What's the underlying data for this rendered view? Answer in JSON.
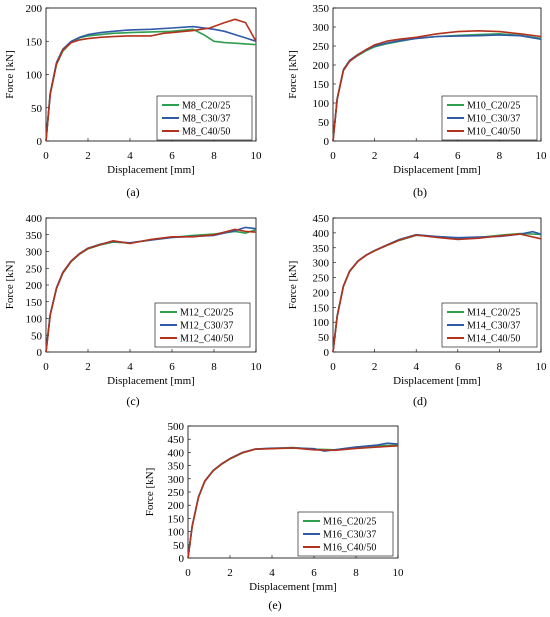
{
  "colors": {
    "c20": "#2e9e4f",
    "c30": "#2f5aa8",
    "c40": "#b3321e"
  },
  "chart_data": [
    {
      "type": "line",
      "panel_label": "(a)",
      "xlabel": "Displacement [mm]",
      "ylabel": "Force [kN]",
      "xlim": [
        0,
        10
      ],
      "ylim": [
        0,
        200
      ],
      "xticks": [
        0,
        2,
        4,
        6,
        8,
        10
      ],
      "yticks": [
        0,
        50,
        100,
        150,
        200
      ],
      "grid": false,
      "legend": "bottom-right",
      "series": [
        {
          "name": "M8_C20/25",
          "x": [
            0,
            0.2,
            0.5,
            0.8,
            1.2,
            1.6,
            2,
            2.6,
            3.2,
            4,
            5,
            6,
            7,
            7.5,
            8,
            8.5,
            9,
            9.5,
            10
          ],
          "y": [
            0,
            70,
            115,
            135,
            148,
            155,
            158,
            160,
            162,
            163,
            164,
            165,
            168,
            160,
            150,
            148,
            147,
            146,
            145
          ]
        },
        {
          "name": "M8_C30/37",
          "x": [
            0,
            0.2,
            0.5,
            0.8,
            1.2,
            1.6,
            2,
            2.6,
            3.2,
            4,
            5,
            6,
            7,
            8,
            8.5,
            9,
            9.5,
            10
          ],
          "y": [
            0,
            72,
            118,
            138,
            150,
            156,
            160,
            163,
            165,
            167,
            168,
            170,
            172,
            168,
            165,
            160,
            155,
            150
          ]
        },
        {
          "name": "M8_C40/50",
          "x": [
            0,
            0.2,
            0.5,
            0.8,
            1.2,
            1.6,
            2,
            2.6,
            3.2,
            4,
            5,
            5.6,
            6,
            7,
            7.8,
            8.5,
            9,
            9.5,
            10
          ],
          "y": [
            0,
            70,
            116,
            137,
            148,
            152,
            154,
            156,
            157,
            158,
            158,
            162,
            163,
            166,
            170,
            178,
            183,
            178,
            150
          ]
        }
      ]
    },
    {
      "type": "line",
      "panel_label": "(b)",
      "xlabel": "Displacement [mm]",
      "ylabel": "Force [kN]",
      "xlim": [
        0,
        10
      ],
      "ylim": [
        0,
        350
      ],
      "xticks": [
        0,
        2,
        4,
        6,
        8,
        10
      ],
      "yticks": [
        0,
        50,
        100,
        150,
        200,
        250,
        300,
        350
      ],
      "grid": false,
      "legend": "bottom-right",
      "series": [
        {
          "name": "M10_C20/25",
          "x": [
            0,
            0.2,
            0.5,
            0.8,
            1.2,
            1.6,
            2,
            2.6,
            3.2,
            4,
            5,
            6,
            7,
            8,
            9,
            10
          ],
          "y": [
            0,
            110,
            185,
            210,
            225,
            238,
            248,
            256,
            262,
            270,
            275,
            278,
            280,
            282,
            278,
            270
          ]
        },
        {
          "name": "M10_C30/37",
          "x": [
            0,
            0.2,
            0.5,
            0.8,
            1.2,
            1.6,
            2,
            2.6,
            3.2,
            4,
            5,
            6,
            7,
            8,
            9,
            10
          ],
          "y": [
            0,
            112,
            188,
            212,
            228,
            240,
            250,
            258,
            264,
            270,
            275,
            276,
            277,
            279,
            277,
            268
          ]
        },
        {
          "name": "M10_C40/50",
          "x": [
            0,
            0.2,
            0.5,
            0.8,
            1.2,
            1.6,
            2,
            2.6,
            3.2,
            4,
            5,
            6,
            7,
            8,
            9,
            10
          ],
          "y": [
            0,
            110,
            186,
            210,
            227,
            241,
            253,
            263,
            268,
            273,
            282,
            288,
            290,
            288,
            282,
            275
          ]
        }
      ]
    },
    {
      "type": "line",
      "panel_label": "(c)",
      "xlabel": "Displacement [mm]",
      "ylabel": "Force [kN]",
      "xlim": [
        0,
        10
      ],
      "ylim": [
        0,
        400
      ],
      "xticks": [
        0,
        2,
        4,
        6,
        8,
        10
      ],
      "yticks": [
        0,
        50,
        100,
        150,
        200,
        250,
        300,
        350,
        400
      ],
      "grid": false,
      "legend": "bottom-right",
      "series": [
        {
          "name": "M12_C20/25",
          "x": [
            0,
            0.2,
            0.5,
            0.8,
            1.2,
            1.6,
            2,
            2.6,
            3.2,
            4,
            5,
            6,
            7,
            8,
            9,
            9.5,
            10
          ],
          "y": [
            0,
            110,
            190,
            235,
            270,
            292,
            308,
            320,
            328,
            325,
            335,
            342,
            348,
            352,
            360,
            355,
            365
          ]
        },
        {
          "name": "M12_C30/37",
          "x": [
            0,
            0.2,
            0.5,
            0.8,
            1.2,
            1.6,
            2,
            2.6,
            3.2,
            4,
            5,
            6,
            7,
            8,
            9,
            9.5,
            10
          ],
          "y": [
            0,
            112,
            192,
            238,
            272,
            294,
            310,
            322,
            330,
            326,
            334,
            342,
            345,
            348,
            362,
            372,
            368
          ]
        },
        {
          "name": "M12_C40/50",
          "x": [
            0,
            0.2,
            0.5,
            0.8,
            1.2,
            1.6,
            2,
            2.6,
            3.2,
            4,
            5,
            6,
            7,
            8,
            9,
            9.5,
            10
          ],
          "y": [
            0,
            110,
            190,
            236,
            271,
            293,
            309,
            321,
            332,
            324,
            336,
            344,
            344,
            350,
            366,
            360,
            358
          ]
        }
      ]
    },
    {
      "type": "line",
      "panel_label": "(d)",
      "xlabel": "Displacement [mm]",
      "ylabel": "Force [kN]",
      "xlim": [
        0,
        10
      ],
      "ylim": [
        0,
        450
      ],
      "xticks": [
        0,
        2,
        4,
        6,
        8,
        10
      ],
      "yticks": [
        0,
        50,
        100,
        150,
        200,
        250,
        300,
        350,
        400,
        450
      ],
      "grid": false,
      "legend": "bottom-right",
      "series": [
        {
          "name": "M14_C20/25",
          "x": [
            0,
            0.2,
            0.5,
            0.8,
            1.2,
            1.6,
            2,
            2.6,
            3.2,
            4,
            5,
            6,
            7,
            8,
            9,
            10
          ],
          "y": [
            0,
            120,
            220,
            270,
            305,
            325,
            340,
            358,
            375,
            392,
            388,
            382,
            385,
            392,
            398,
            395
          ]
        },
        {
          "name": "M14_C30/37",
          "x": [
            0,
            0.2,
            0.5,
            0.8,
            1.2,
            1.6,
            2,
            2.6,
            3.2,
            4,
            5,
            6,
            7,
            8,
            9,
            9.6,
            10
          ],
          "y": [
            0,
            122,
            222,
            272,
            306,
            326,
            341,
            360,
            378,
            394,
            388,
            384,
            386,
            388,
            396,
            404,
            396
          ]
        },
        {
          "name": "M14_C40/50",
          "x": [
            0,
            0.2,
            0.5,
            0.8,
            1.2,
            1.6,
            2,
            2.6,
            3.2,
            4,
            5,
            6,
            7,
            8,
            9,
            10
          ],
          "y": [
            0,
            120,
            221,
            271,
            305,
            325,
            340,
            359,
            376,
            393,
            385,
            378,
            382,
            390,
            396,
            380
          ]
        }
      ]
    },
    {
      "type": "line",
      "panel_label": "(e)",
      "xlabel": "Displacement [mm]",
      "ylabel": "Force [kN]",
      "xlim": [
        0,
        10
      ],
      "ylim": [
        0,
        500
      ],
      "xticks": [
        0,
        2,
        4,
        6,
        8,
        10
      ],
      "yticks": [
        0,
        50,
        100,
        150,
        200,
        250,
        300,
        350,
        400,
        450,
        500
      ],
      "grid": false,
      "legend": "bottom-right",
      "series": [
        {
          "name": "M16_C20/25",
          "x": [
            0,
            0.2,
            0.5,
            0.8,
            1.2,
            1.6,
            2,
            2.6,
            3.2,
            4,
            5,
            6,
            7,
            8,
            9,
            10
          ],
          "y": [
            0,
            120,
            230,
            290,
            330,
            355,
            375,
            398,
            412,
            415,
            418,
            412,
            410,
            420,
            425,
            428
          ]
        },
        {
          "name": "M16_C30/37",
          "x": [
            0,
            0.2,
            0.5,
            0.8,
            1.2,
            1.6,
            2,
            2.6,
            3.2,
            4,
            5,
            6,
            6.5,
            7,
            8,
            9,
            9.5,
            10
          ],
          "y": [
            0,
            122,
            232,
            292,
            332,
            357,
            377,
            400,
            413,
            416,
            417,
            414,
            405,
            410,
            420,
            428,
            435,
            432
          ]
        },
        {
          "name": "M16_C40/50",
          "x": [
            0,
            0.2,
            0.5,
            0.8,
            1.2,
            1.6,
            2,
            2.6,
            3.2,
            4,
            5,
            6,
            7,
            8,
            9,
            10
          ],
          "y": [
            0,
            120,
            231,
            291,
            331,
            356,
            376,
            399,
            412,
            414,
            417,
            410,
            408,
            415,
            420,
            425
          ]
        }
      ]
    }
  ]
}
